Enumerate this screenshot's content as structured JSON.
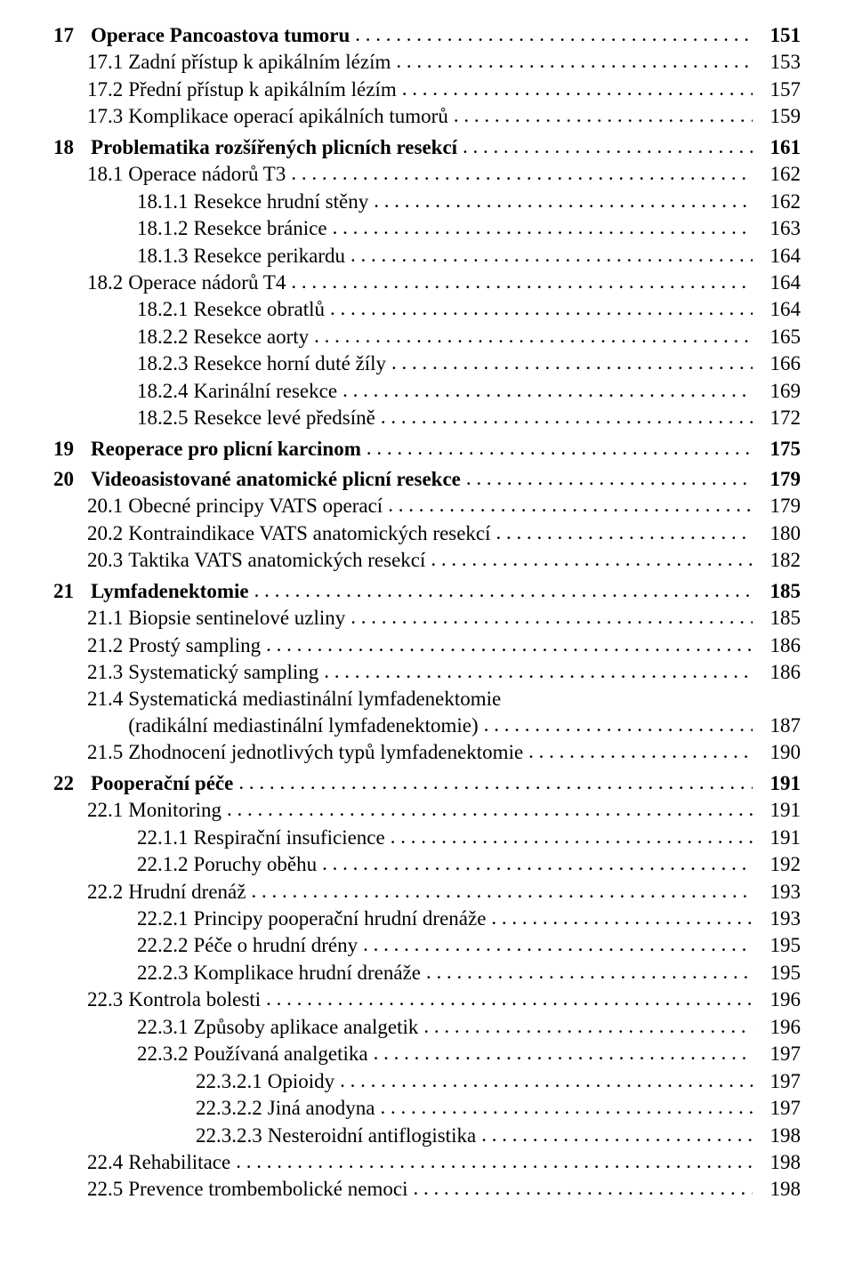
{
  "toc": [
    {
      "lvl": 0,
      "num": "17",
      "title": "Operace Pancoastova tumoru",
      "page": "151",
      "bold": true
    },
    {
      "lvl": 1,
      "num": "17.1",
      "title": "Zadní přístup k apikálním lézím",
      "page": "153"
    },
    {
      "lvl": 1,
      "num": "17.2",
      "title": "Přední přístup k apikálním lézím",
      "page": "157"
    },
    {
      "lvl": 1,
      "num": "17.3",
      "title": "Komplikace operací apikálních tumorů",
      "page": "159"
    },
    {
      "lvl": 0,
      "num": "18",
      "title": "Problematika rozšířených plicních resekcí",
      "page": "161",
      "bold": true,
      "gap": true
    },
    {
      "lvl": 1,
      "num": "18.1",
      "title": "Operace nádorů T3",
      "page": "162"
    },
    {
      "lvl": 2,
      "num": "18.1.1",
      "title": "Resekce hrudní stěny",
      "page": "162"
    },
    {
      "lvl": 2,
      "num": "18.1.2",
      "title": "Resekce bránice",
      "page": "163"
    },
    {
      "lvl": 2,
      "num": "18.1.3",
      "title": "Resekce perikardu",
      "page": "164"
    },
    {
      "lvl": 1,
      "num": "18.2",
      "title": "Operace nádorů T4",
      "page": "164"
    },
    {
      "lvl": 2,
      "num": "18.2.1",
      "title": "Resekce obratlů",
      "page": "164"
    },
    {
      "lvl": 2,
      "num": "18.2.2",
      "title": "Resekce aorty",
      "page": "165"
    },
    {
      "lvl": 2,
      "num": "18.2.3",
      "title": "Resekce horní duté žíly",
      "page": "166"
    },
    {
      "lvl": 2,
      "num": "18.2.4",
      "title": "Karinální resekce",
      "page": "169"
    },
    {
      "lvl": 2,
      "num": "18.2.5",
      "title": "Resekce levé předsíně",
      "page": "172"
    },
    {
      "lvl": 0,
      "num": "19",
      "title": "Reoperace pro plicní karcinom",
      "page": "175",
      "bold": true,
      "gap": true
    },
    {
      "lvl": 0,
      "num": "20",
      "title": "Videoasistované anatomické plicní resekce",
      "page": "179",
      "bold": true,
      "gap": true
    },
    {
      "lvl": 1,
      "num": "20.1",
      "title": "Obecné principy VATS operací",
      "page": "179"
    },
    {
      "lvl": 1,
      "num": "20.2",
      "title": "Kontraindikace VATS anatomických resekcí",
      "page": "180"
    },
    {
      "lvl": 1,
      "num": "20.3",
      "title": "Taktika VATS anatomických resekcí",
      "page": "182"
    },
    {
      "lvl": 0,
      "num": "21",
      "title": "Lymfadenektomie",
      "page": "185",
      "bold": true,
      "gap": true
    },
    {
      "lvl": 1,
      "num": "21.1",
      "title": "Biopsie sentinelové uzliny",
      "page": "185"
    },
    {
      "lvl": 1,
      "num": "21.2",
      "title": "Prostý sampling",
      "page": "186"
    },
    {
      "lvl": 1,
      "num": "21.3",
      "title": "Systematický sampling",
      "page": "186"
    },
    {
      "lvl": 1,
      "num": "21.4",
      "title": "Systematická mediastinální lymfadenektomie",
      "wrapTitle2": "(radikální mediastinální lymfadenektomie)",
      "page": "187"
    },
    {
      "lvl": 1,
      "num": "21.5",
      "title": "Zhodnocení jednotlivých typů lymfadenektomie",
      "page": "190"
    },
    {
      "lvl": 0,
      "num": "22",
      "title": "Pooperační péče",
      "page": "191",
      "bold": true,
      "gap": true
    },
    {
      "lvl": 1,
      "num": "22.1",
      "title": "Monitoring",
      "page": "191"
    },
    {
      "lvl": 2,
      "num": "22.1.1",
      "title": "Respirační insuficience",
      "page": "191"
    },
    {
      "lvl": 2,
      "num": "22.1.2",
      "title": "Poruchy oběhu",
      "page": "192"
    },
    {
      "lvl": 1,
      "num": "22.2",
      "title": "Hrudní drenáž",
      "page": "193"
    },
    {
      "lvl": 2,
      "num": "22.2.1",
      "title": "Principy pooperační hrudní drenáže",
      "page": "193"
    },
    {
      "lvl": 2,
      "num": "22.2.2",
      "title": "Péče o hrudní drény",
      "page": "195"
    },
    {
      "lvl": 2,
      "num": "22.2.3",
      "title": "Komplikace hrudní drenáže",
      "page": "195"
    },
    {
      "lvl": 1,
      "num": "22.3",
      "title": "Kontrola bolesti",
      "page": "196"
    },
    {
      "lvl": 2,
      "num": "22.3.1",
      "title": "Způsoby aplikace analgetik",
      "page": "196"
    },
    {
      "lvl": 2,
      "num": "22.3.2",
      "title": "Používaná analgetika",
      "page": "197"
    },
    {
      "lvl": 3,
      "num": "22.3.2.1",
      "title": "Opioidy",
      "page": "197"
    },
    {
      "lvl": 3,
      "num": "22.3.2.2",
      "title": "Jiná anodyna",
      "page": "197"
    },
    {
      "lvl": 3,
      "num": "22.3.2.3",
      "title": "Nesteroidní antiflogistika",
      "page": "198"
    },
    {
      "lvl": 1,
      "num": "22.4",
      "title": "Rehabilitace",
      "page": "198"
    },
    {
      "lvl": 1,
      "num": "22.5",
      "title": "Prevence trombembolické nemoci",
      "page": "198"
    }
  ]
}
